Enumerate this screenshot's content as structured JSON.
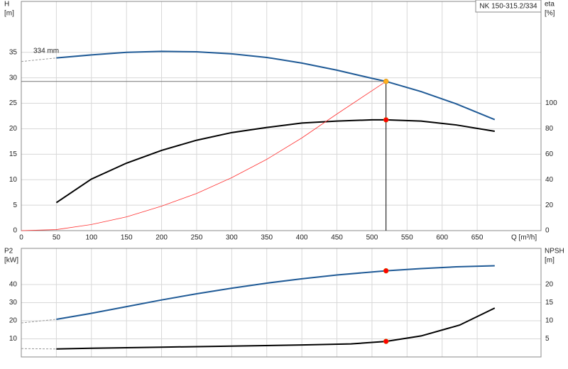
{
  "chart_data": [
    {
      "type": "line",
      "title": "NK 150-315.2/334",
      "annotation": "334 mm",
      "ylabel": [
        "H",
        "[m]"
      ],
      "y2label": [
        "eta",
        "[%]"
      ],
      "xlabel": "Q [m³/h]",
      "xlim": [
        0,
        741
      ],
      "xticks": [
        0,
        50,
        100,
        150,
        200,
        250,
        300,
        350,
        400,
        450,
        500,
        550,
        600,
        650
      ],
      "ylim": [
        0,
        45
      ],
      "yticks": [
        0,
        5,
        10,
        15,
        20,
        25,
        30,
        35
      ],
      "y2lim": [
        0,
        180
      ],
      "y2ticks": [
        0,
        20,
        40,
        60,
        80,
        100
      ],
      "grid": true,
      "series": [
        {
          "color": "#999999",
          "width": 1,
          "dash": true,
          "x": [
            0,
            50
          ],
          "values": [
            33.2,
            33.9
          ]
        },
        {
          "color": "#1f5a96",
          "width": 2,
          "x": [
            50,
            100,
            150,
            200,
            250,
            300,
            350,
            400,
            450,
            500,
            520,
            570,
            620,
            675
          ],
          "values": [
            33.9,
            34.5,
            35.0,
            35.2,
            35.1,
            34.7,
            34.0,
            32.9,
            31.5,
            29.9,
            29.3,
            27.3,
            24.9,
            21.8
          ]
        },
        {
          "color": "#000000",
          "width": 2,
          "axis": "y2",
          "x": [
            50,
            100,
            150,
            200,
            250,
            300,
            350,
            400,
            450,
            500,
            520,
            570,
            620,
            675
          ],
          "values": [
            22,
            40.5,
            53,
            63,
            71,
            77,
            81,
            84.5,
            86,
            87,
            87,
            86,
            83,
            78
          ]
        },
        {
          "color": "#ff3030",
          "width": 0.8,
          "x": [
            0,
            50,
            100,
            150,
            200,
            250,
            300,
            350,
            400,
            450,
            520
          ],
          "values": [
            0,
            0.2,
            1.2,
            2.7,
            4.8,
            7.3,
            10.4,
            14.0,
            18.2,
            22.9,
            29.3
          ]
        },
        {
          "color": "#777777",
          "width": 1,
          "x": [
            0,
            520
          ],
          "values": [
            29.3,
            29.3
          ]
        },
        {
          "color": "#000000",
          "width": 1,
          "x": [
            520,
            520
          ],
          "values": [
            29.3,
            0
          ]
        }
      ],
      "points": [
        {
          "x": 520,
          "y": 29.3,
          "color": "#ffb020"
        },
        {
          "x": 520,
          "y": 87,
          "color": "#ff0000",
          "axis": "y2"
        }
      ]
    },
    {
      "type": "line",
      "ylabel": [
        "P2",
        "[kW]"
      ],
      "y2label": [
        "NPSH",
        "[m]"
      ],
      "xlim": [
        0,
        741
      ],
      "xticks": [
        0,
        50,
        100,
        150,
        200,
        250,
        300,
        350,
        400,
        450,
        500,
        550,
        600,
        650
      ],
      "ylim": [
        0,
        60
      ],
      "yticks": [
        10,
        20,
        30,
        40
      ],
      "y2lim": [
        0,
        30
      ],
      "y2ticks": [
        5,
        10,
        15,
        20
      ],
      "grid": true,
      "series": [
        {
          "color": "#999999",
          "width": 1,
          "dash": true,
          "x": [
            0,
            50
          ],
          "values": [
            18.8,
            20.8
          ]
        },
        {
          "color": "#1f5a96",
          "width": 2,
          "x": [
            50,
            100,
            150,
            200,
            250,
            300,
            350,
            400,
            450,
            520,
            570,
            620,
            675
          ],
          "values": [
            20.8,
            24.1,
            27.8,
            31.5,
            34.9,
            38.0,
            40.8,
            43.2,
            45.3,
            47.6,
            48.8,
            49.8,
            50.4
          ]
        },
        {
          "color": "#999999",
          "width": 1,
          "dash": true,
          "axis": "y2",
          "x": [
            0,
            50
          ],
          "values": [
            2.3,
            2.2
          ]
        },
        {
          "color": "#000000",
          "width": 2,
          "axis": "y2",
          "x": [
            50,
            100,
            200,
            300,
            400,
            470,
            520,
            570,
            625,
            675
          ],
          "values": [
            2.2,
            2.4,
            2.7,
            3.0,
            3.3,
            3.6,
            4.3,
            5.8,
            8.8,
            13.5
          ]
        }
      ],
      "points": [
        {
          "x": 520,
          "y": 47.6,
          "color": "#ff0000"
        },
        {
          "x": 520,
          "y": 4.3,
          "color": "#ff0000",
          "axis": "y2"
        }
      ]
    }
  ]
}
